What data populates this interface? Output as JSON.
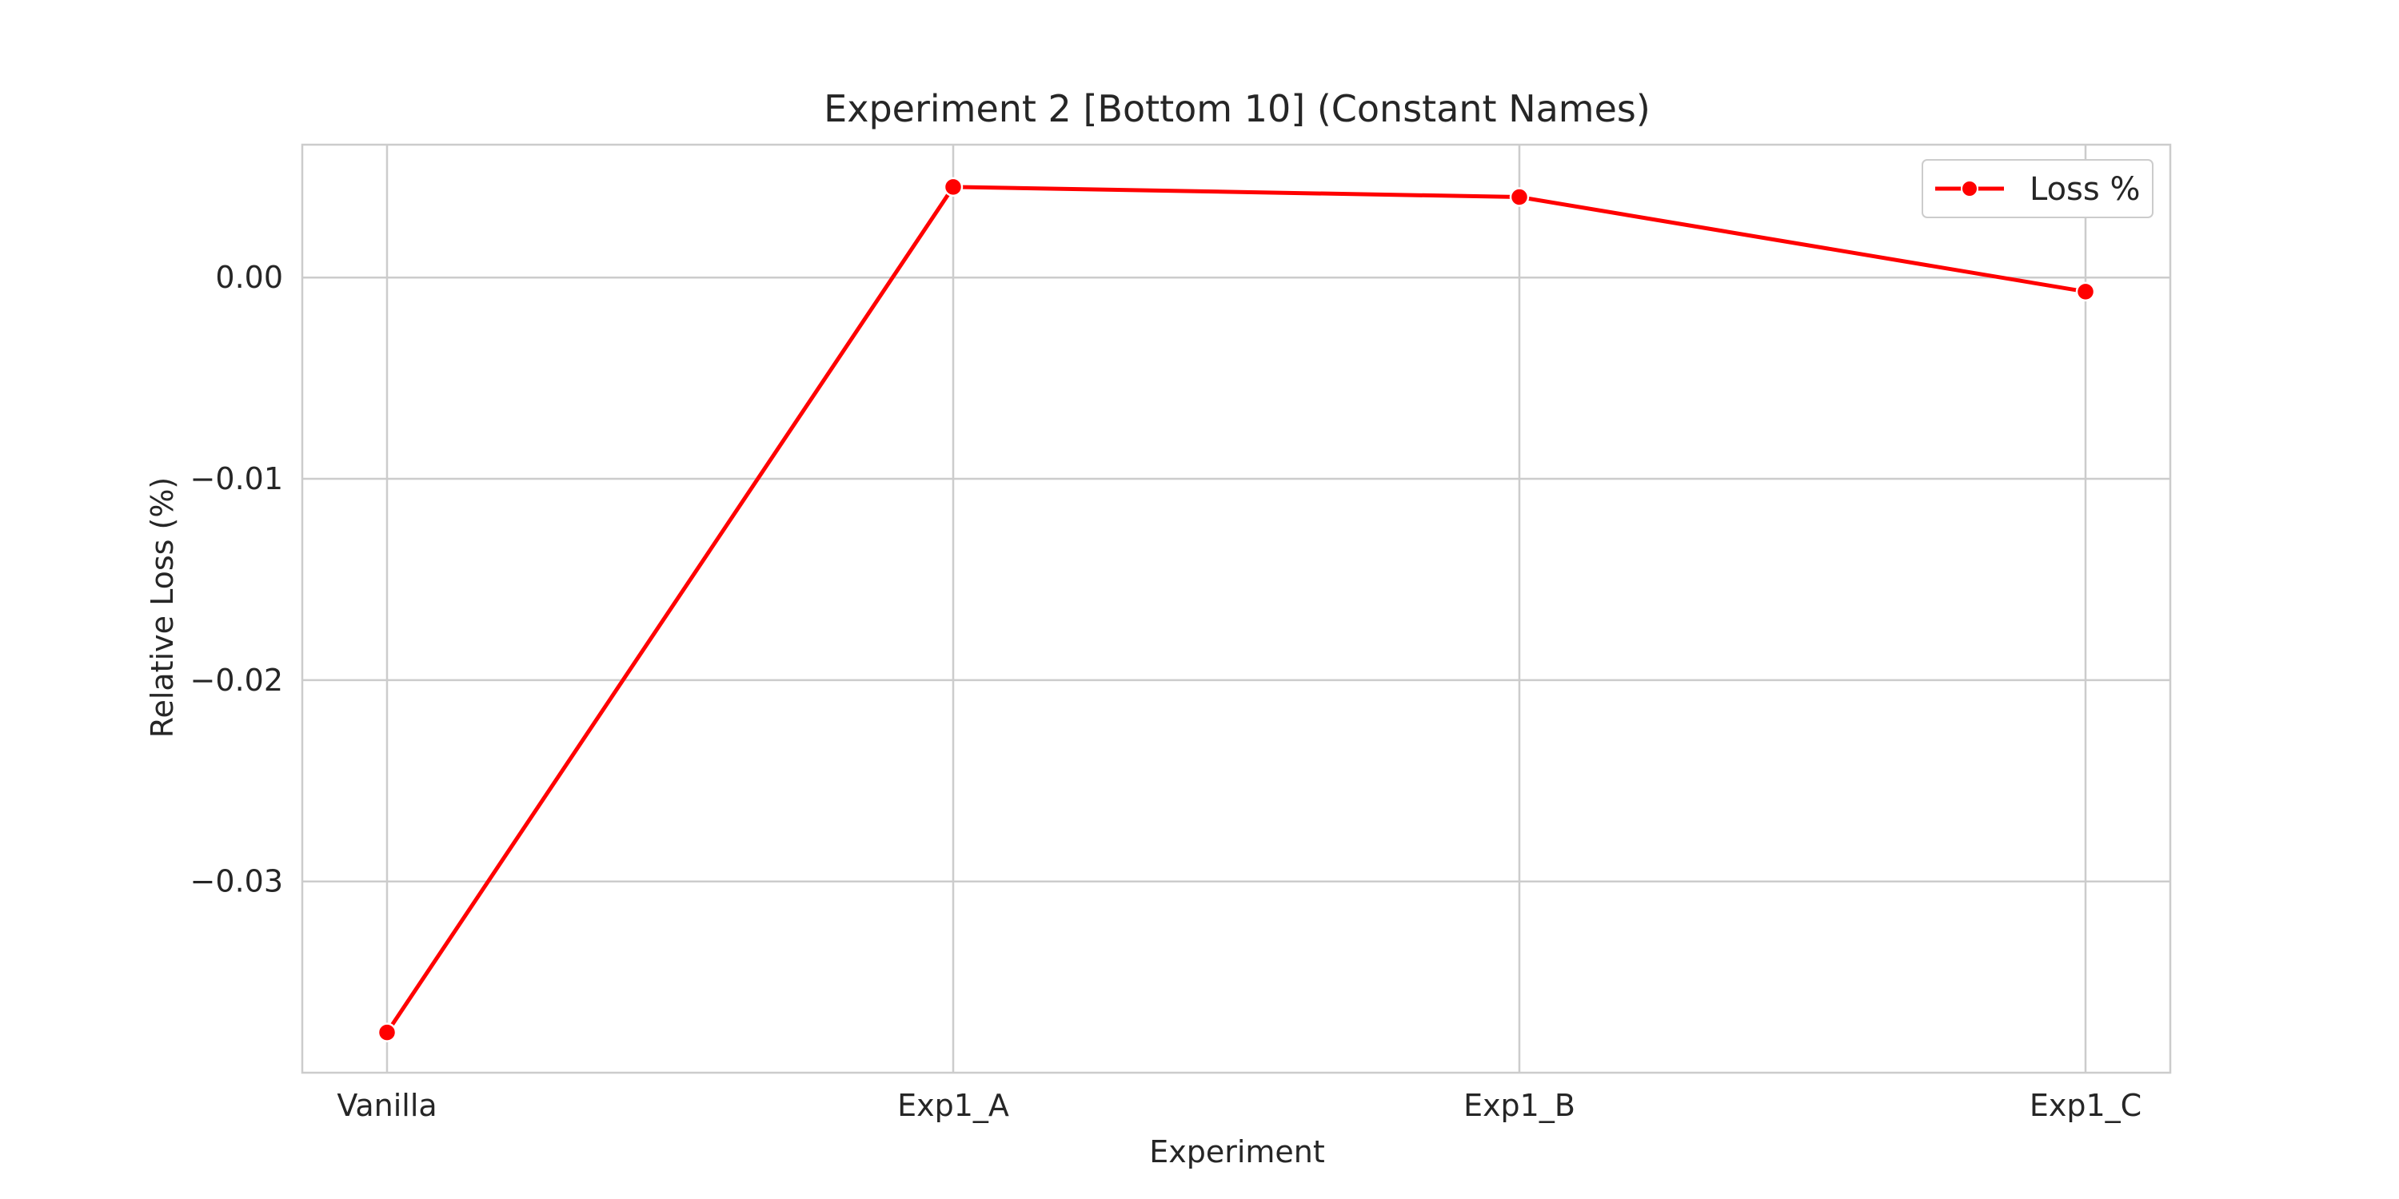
{
  "chart_data": {
    "type": "line",
    "title": "Experiment 2 [Bottom 10] (Constant Names)",
    "xlabel": "Experiment",
    "ylabel": "Relative Loss (%)",
    "categories": [
      "Vanilla",
      "Exp1_A",
      "Exp1_B",
      "Exp1_C"
    ],
    "series": [
      {
        "name": "Loss %",
        "values": [
          -0.0375,
          0.0045,
          0.004,
          -0.0007
        ],
        "color": "#ff0000"
      }
    ],
    "yticks": [
      0.0,
      -0.01,
      -0.02,
      -0.03
    ],
    "ytick_labels": [
      "0.00",
      "−0.01",
      "−0.02",
      "−0.03"
    ],
    "ylim": [
      -0.0395,
      0.0066
    ],
    "grid": true,
    "legend_position": "top-right",
    "colors": {
      "grid": "#cccccc",
      "frame": "#cccccc",
      "text": "#262626"
    }
  }
}
